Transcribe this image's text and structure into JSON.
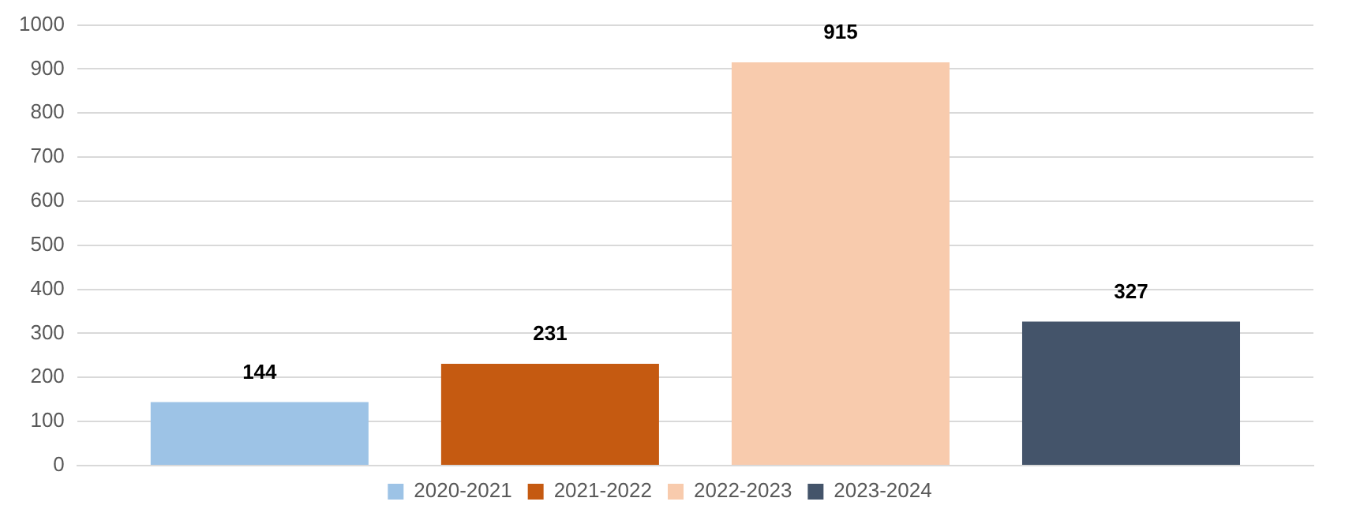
{
  "chart_data": {
    "type": "bar",
    "categories": [
      null
    ],
    "series": [
      {
        "name": "2020-2021",
        "color": "#9dc3e6",
        "values": [
          144
        ]
      },
      {
        "name": "2021-2022",
        "color": "#c55a11",
        "values": [
          231
        ]
      },
      {
        "name": "2022-2023",
        "color": "#f8cbad",
        "values": [
          915
        ]
      },
      {
        "name": "2023-2024",
        "color": "#44546a",
        "values": [
          327
        ]
      }
    ],
    "ylim": [
      0,
      1000
    ],
    "yticks": [
      0,
      100,
      200,
      300,
      400,
      500,
      600,
      700,
      800,
      900,
      1000
    ],
    "grid": "y",
    "legend": "bottom",
    "data_labels": true
  }
}
